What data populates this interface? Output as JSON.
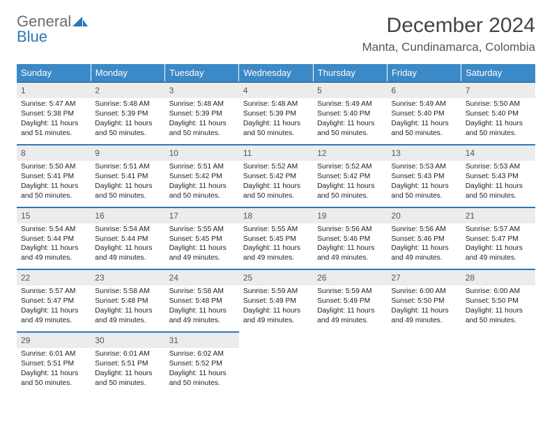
{
  "logo": {
    "line1": "General",
    "line2": "Blue",
    "line1_color": "#6c6c6c",
    "line2_color": "#2f76b5",
    "icon_color": "#2f76b5"
  },
  "header": {
    "month_title": "December 2024",
    "location": "Manta, Cundinamarca, Colombia"
  },
  "colors": {
    "header_row_bg": "#3b89c7",
    "header_row_text": "#ffffff",
    "daynum_bg": "#ececec",
    "row_divider": "#2f76b5",
    "body_text": "#222222"
  },
  "typography": {
    "month_title_fontsize": 30,
    "location_fontsize": 17,
    "header_cell_fontsize": 13,
    "daynum_fontsize": 12,
    "daybody_fontsize": 10.3
  },
  "weekdays": [
    "Sunday",
    "Monday",
    "Tuesday",
    "Wednesday",
    "Thursday",
    "Friday",
    "Saturday"
  ],
  "weeks": [
    [
      {
        "day": "1",
        "sunrise": "Sunrise: 5:47 AM",
        "sunset": "Sunset: 5:38 PM",
        "daylight": "Daylight: 11 hours and 51 minutes."
      },
      {
        "day": "2",
        "sunrise": "Sunrise: 5:48 AM",
        "sunset": "Sunset: 5:39 PM",
        "daylight": "Daylight: 11 hours and 50 minutes."
      },
      {
        "day": "3",
        "sunrise": "Sunrise: 5:48 AM",
        "sunset": "Sunset: 5:39 PM",
        "daylight": "Daylight: 11 hours and 50 minutes."
      },
      {
        "day": "4",
        "sunrise": "Sunrise: 5:48 AM",
        "sunset": "Sunset: 5:39 PM",
        "daylight": "Daylight: 11 hours and 50 minutes."
      },
      {
        "day": "5",
        "sunrise": "Sunrise: 5:49 AM",
        "sunset": "Sunset: 5:40 PM",
        "daylight": "Daylight: 11 hours and 50 minutes."
      },
      {
        "day": "6",
        "sunrise": "Sunrise: 5:49 AM",
        "sunset": "Sunset: 5:40 PM",
        "daylight": "Daylight: 11 hours and 50 minutes."
      },
      {
        "day": "7",
        "sunrise": "Sunrise: 5:50 AM",
        "sunset": "Sunset: 5:40 PM",
        "daylight": "Daylight: 11 hours and 50 minutes."
      }
    ],
    [
      {
        "day": "8",
        "sunrise": "Sunrise: 5:50 AM",
        "sunset": "Sunset: 5:41 PM",
        "daylight": "Daylight: 11 hours and 50 minutes."
      },
      {
        "day": "9",
        "sunrise": "Sunrise: 5:51 AM",
        "sunset": "Sunset: 5:41 PM",
        "daylight": "Daylight: 11 hours and 50 minutes."
      },
      {
        "day": "10",
        "sunrise": "Sunrise: 5:51 AM",
        "sunset": "Sunset: 5:42 PM",
        "daylight": "Daylight: 11 hours and 50 minutes."
      },
      {
        "day": "11",
        "sunrise": "Sunrise: 5:52 AM",
        "sunset": "Sunset: 5:42 PM",
        "daylight": "Daylight: 11 hours and 50 minutes."
      },
      {
        "day": "12",
        "sunrise": "Sunrise: 5:52 AM",
        "sunset": "Sunset: 5:42 PM",
        "daylight": "Daylight: 11 hours and 50 minutes."
      },
      {
        "day": "13",
        "sunrise": "Sunrise: 5:53 AM",
        "sunset": "Sunset: 5:43 PM",
        "daylight": "Daylight: 11 hours and 50 minutes."
      },
      {
        "day": "14",
        "sunrise": "Sunrise: 5:53 AM",
        "sunset": "Sunset: 5:43 PM",
        "daylight": "Daylight: 11 hours and 50 minutes."
      }
    ],
    [
      {
        "day": "15",
        "sunrise": "Sunrise: 5:54 AM",
        "sunset": "Sunset: 5:44 PM",
        "daylight": "Daylight: 11 hours and 49 minutes."
      },
      {
        "day": "16",
        "sunrise": "Sunrise: 5:54 AM",
        "sunset": "Sunset: 5:44 PM",
        "daylight": "Daylight: 11 hours and 49 minutes."
      },
      {
        "day": "17",
        "sunrise": "Sunrise: 5:55 AM",
        "sunset": "Sunset: 5:45 PM",
        "daylight": "Daylight: 11 hours and 49 minutes."
      },
      {
        "day": "18",
        "sunrise": "Sunrise: 5:55 AM",
        "sunset": "Sunset: 5:45 PM",
        "daylight": "Daylight: 11 hours and 49 minutes."
      },
      {
        "day": "19",
        "sunrise": "Sunrise: 5:56 AM",
        "sunset": "Sunset: 5:46 PM",
        "daylight": "Daylight: 11 hours and 49 minutes."
      },
      {
        "day": "20",
        "sunrise": "Sunrise: 5:56 AM",
        "sunset": "Sunset: 5:46 PM",
        "daylight": "Daylight: 11 hours and 49 minutes."
      },
      {
        "day": "21",
        "sunrise": "Sunrise: 5:57 AM",
        "sunset": "Sunset: 5:47 PM",
        "daylight": "Daylight: 11 hours and 49 minutes."
      }
    ],
    [
      {
        "day": "22",
        "sunrise": "Sunrise: 5:57 AM",
        "sunset": "Sunset: 5:47 PM",
        "daylight": "Daylight: 11 hours and 49 minutes."
      },
      {
        "day": "23",
        "sunrise": "Sunrise: 5:58 AM",
        "sunset": "Sunset: 5:48 PM",
        "daylight": "Daylight: 11 hours and 49 minutes."
      },
      {
        "day": "24",
        "sunrise": "Sunrise: 5:58 AM",
        "sunset": "Sunset: 5:48 PM",
        "daylight": "Daylight: 11 hours and 49 minutes."
      },
      {
        "day": "25",
        "sunrise": "Sunrise: 5:59 AM",
        "sunset": "Sunset: 5:49 PM",
        "daylight": "Daylight: 11 hours and 49 minutes."
      },
      {
        "day": "26",
        "sunrise": "Sunrise: 5:59 AM",
        "sunset": "Sunset: 5:49 PM",
        "daylight": "Daylight: 11 hours and 49 minutes."
      },
      {
        "day": "27",
        "sunrise": "Sunrise: 6:00 AM",
        "sunset": "Sunset: 5:50 PM",
        "daylight": "Daylight: 11 hours and 49 minutes."
      },
      {
        "day": "28",
        "sunrise": "Sunrise: 6:00 AM",
        "sunset": "Sunset: 5:50 PM",
        "daylight": "Daylight: 11 hours and 50 minutes."
      }
    ],
    [
      {
        "day": "29",
        "sunrise": "Sunrise: 6:01 AM",
        "sunset": "Sunset: 5:51 PM",
        "daylight": "Daylight: 11 hours and 50 minutes."
      },
      {
        "day": "30",
        "sunrise": "Sunrise: 6:01 AM",
        "sunset": "Sunset: 5:51 PM",
        "daylight": "Daylight: 11 hours and 50 minutes."
      },
      {
        "day": "31",
        "sunrise": "Sunrise: 6:02 AM",
        "sunset": "Sunset: 5:52 PM",
        "daylight": "Daylight: 11 hours and 50 minutes."
      },
      null,
      null,
      null,
      null
    ]
  ]
}
